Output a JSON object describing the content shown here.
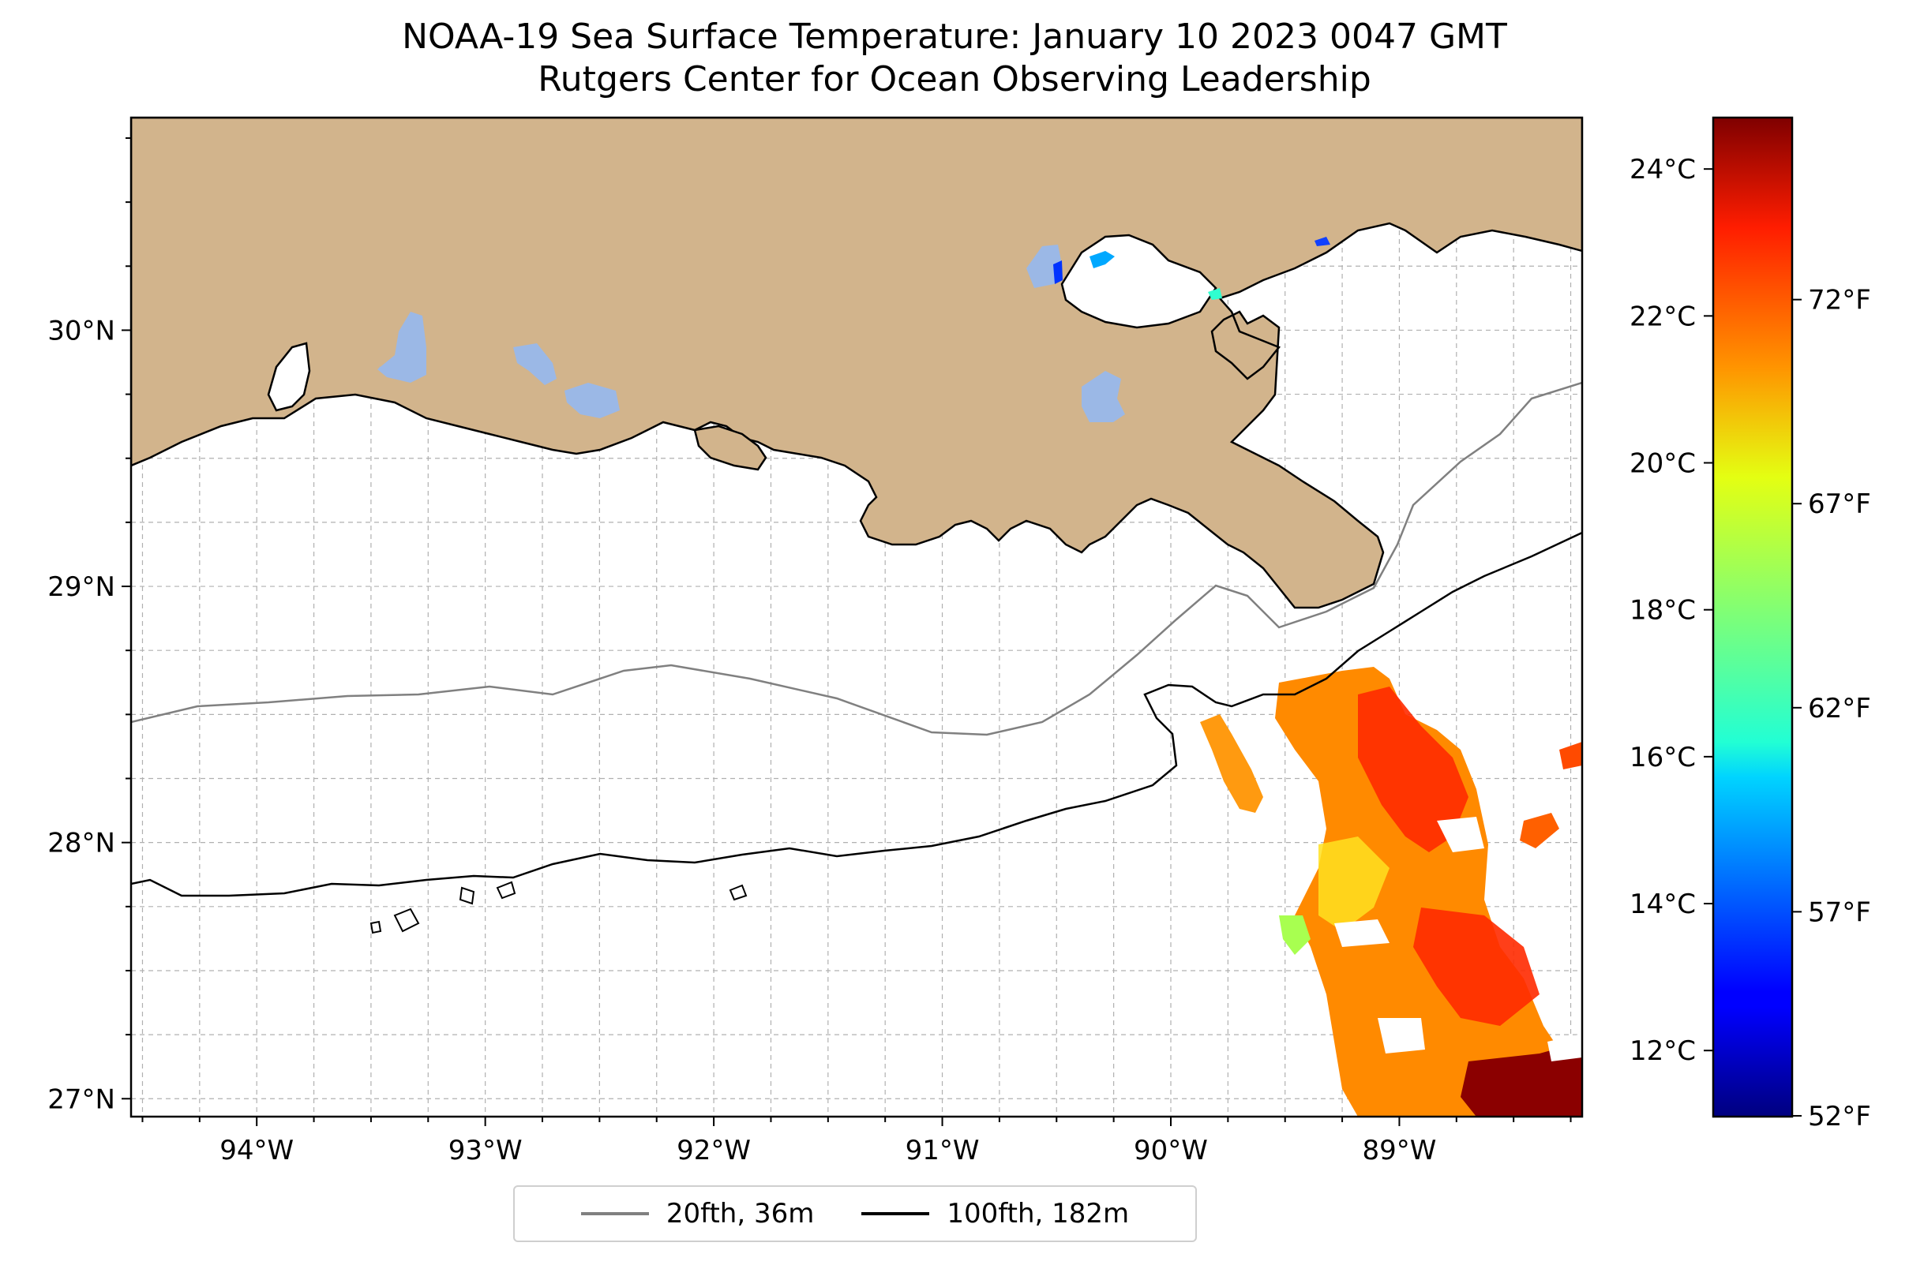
{
  "title": {
    "line1": "NOAA-19 Sea Surface Temperature: January 10 2023 0047 GMT",
    "line2": "Rutgers Center for Ocean Observing Leadership"
  },
  "map": {
    "lon_range": [
      -94.55,
      -88.2
    ],
    "lat_range": [
      26.93,
      30.83
    ],
    "lon_ticks": [
      {
        "value": -94,
        "label": "94°W"
      },
      {
        "value": -93,
        "label": "93°W"
      },
      {
        "value": -92,
        "label": "92°W"
      },
      {
        "value": -91,
        "label": "91°W"
      },
      {
        "value": -90,
        "label": "90°W"
      },
      {
        "value": -89,
        "label": "89°W"
      }
    ],
    "lat_ticks": [
      {
        "value": 30,
        "label": "30°N"
      },
      {
        "value": 29,
        "label": "29°N"
      },
      {
        "value": 28,
        "label": "28°N"
      },
      {
        "value": 27,
        "label": "27°N"
      }
    ],
    "grid": true,
    "land_color": "#d2b48c",
    "lake_color": "#9bb8e6"
  },
  "colorbar": {
    "colormap": "jet",
    "celsius_range": [
      11.1,
      24.7
    ],
    "celsius_ticks": [
      {
        "value": 12,
        "label": "12°C"
      },
      {
        "value": 14,
        "label": "14°C"
      },
      {
        "value": 16,
        "label": "16°C"
      },
      {
        "value": 18,
        "label": "18°C"
      },
      {
        "value": 20,
        "label": "20°C"
      },
      {
        "value": 22,
        "label": "22°C"
      },
      {
        "value": 24,
        "label": "24°C"
      }
    ],
    "fahrenheit_ticks": [
      {
        "value": 52,
        "label": "52°F"
      },
      {
        "value": 57,
        "label": "57°F"
      },
      {
        "value": 62,
        "label": "62°F"
      },
      {
        "value": 67,
        "label": "67°F"
      },
      {
        "value": 72,
        "label": "72°F"
      }
    ]
  },
  "legend": {
    "items": [
      {
        "label": "20fth, 36m",
        "color": "#808080"
      },
      {
        "label": "100fth, 182m",
        "color": "#000000"
      }
    ]
  }
}
